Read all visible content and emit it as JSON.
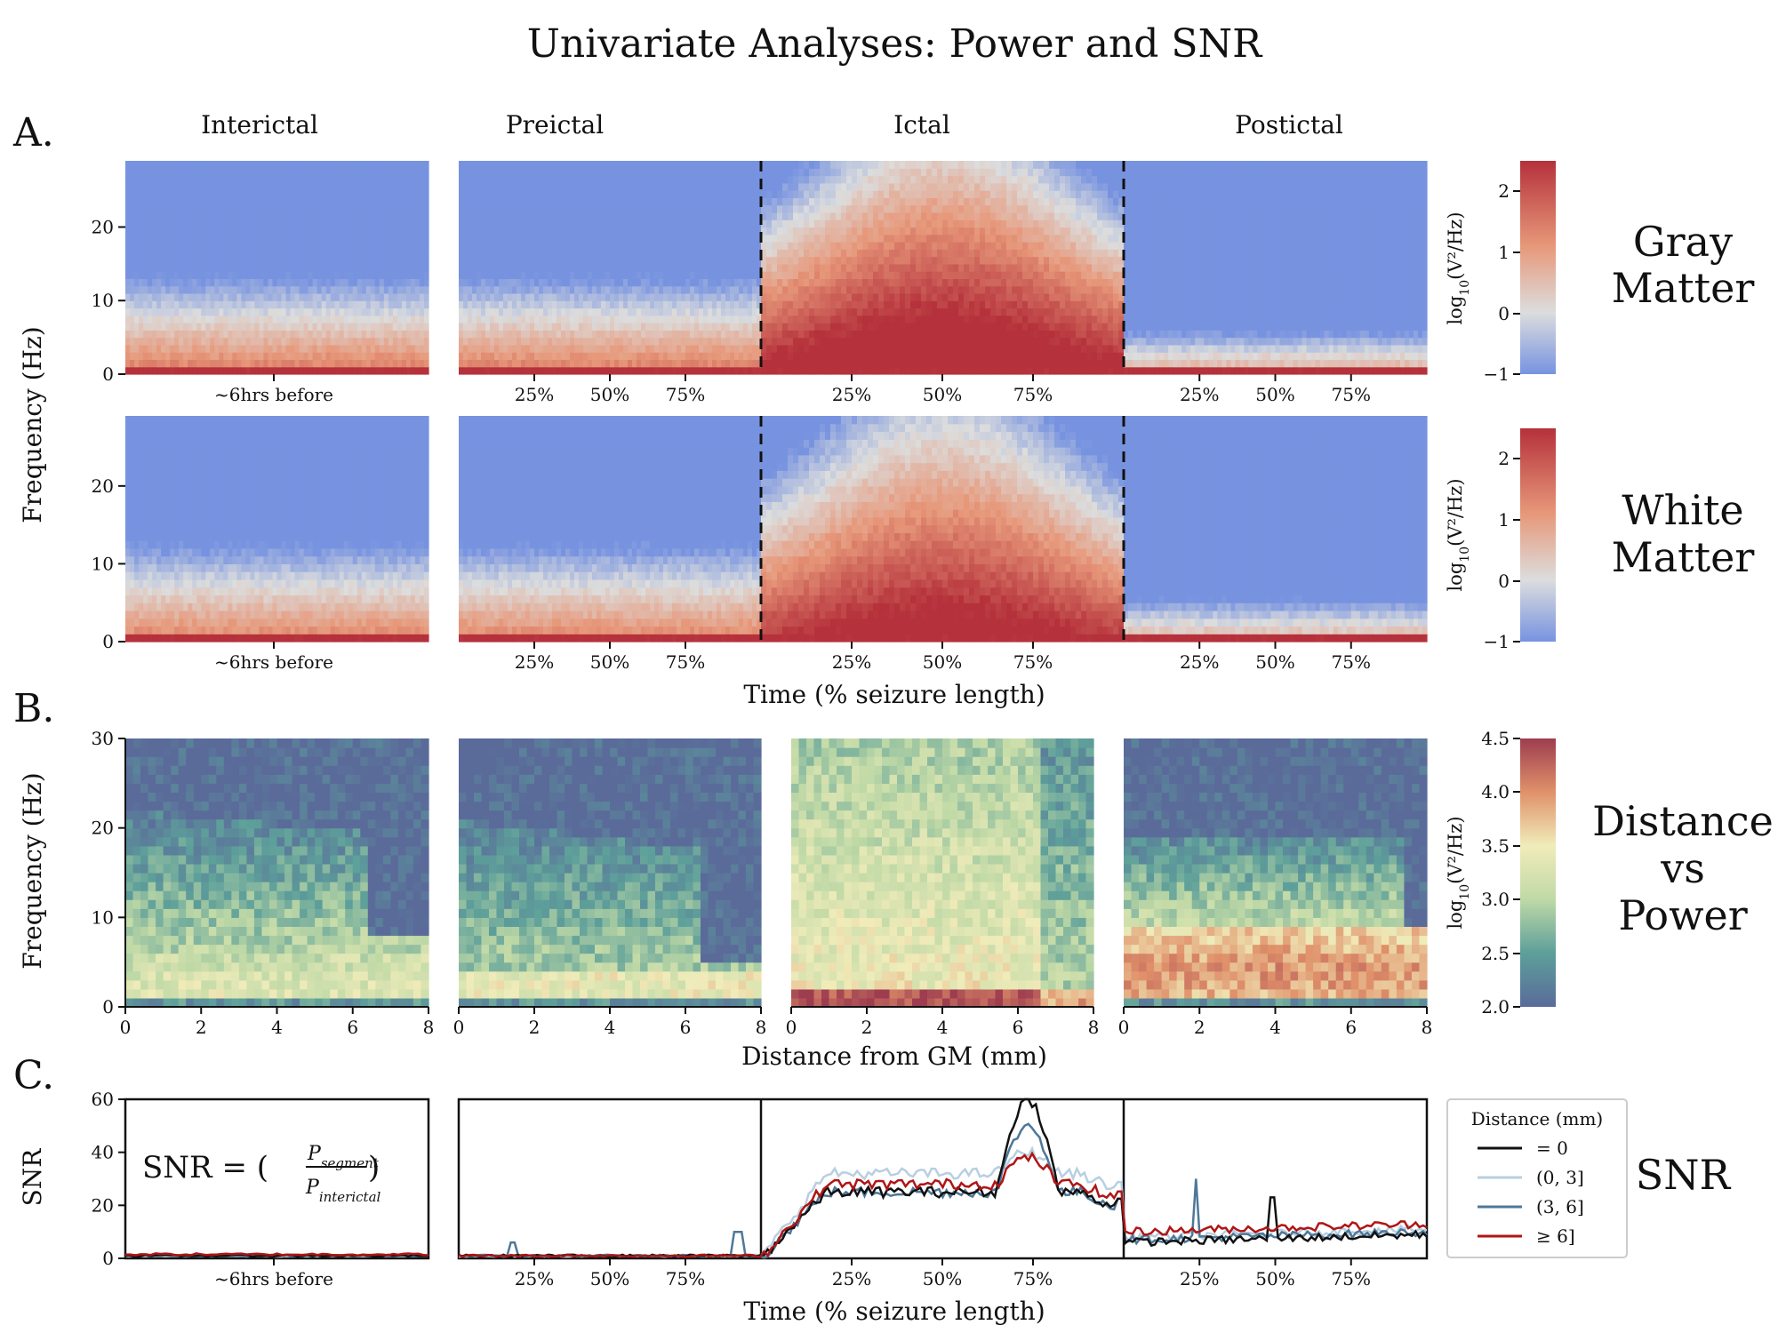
{
  "title": "Univariate Analyses: Power and SNR",
  "panel_letters": [
    "A.",
    "B.",
    "C."
  ],
  "segments": [
    "Interictal",
    "Preictal",
    "Ictal",
    "Postictal"
  ],
  "row_labels": {
    "gray": [
      "Gray",
      "Matter"
    ],
    "white": [
      "White",
      "Matter"
    ],
    "distance": [
      "Distance",
      "vs",
      "Power"
    ],
    "snr": [
      "SNR"
    ]
  },
  "axis_titles": {
    "freq": "Frequency (Hz)",
    "time": "Time (% seizure length)",
    "distance": "Distance from GM (mm)",
    "snr": "SNR"
  },
  "colors": {
    "low": "#7793e0",
    "mid": "#dcdddd",
    "high": "#b5313b",
    "dist_low": "#5a6b9a",
    "dist_mid": "#f0ecba",
    "dist_high": "#9e3d50",
    "series_0": "#111111",
    "series_1": "#b8cfe0",
    "series_2": "#4e7899",
    "series_3": "#b01515"
  },
  "chart_data": [
    {
      "type": "heatmap",
      "name": "Gray Matter spectrogram",
      "categories": [
        "Interictal",
        "Preictal",
        "Ictal",
        "Postictal"
      ],
      "ylim": [
        0,
        29
      ],
      "yticks": [
        0,
        10,
        20
      ],
      "interictal_xtick": "~6hrs before",
      "xticks_pct": [
        "25%",
        "50%",
        "75%"
      ],
      "colorbar": {
        "label_main": "log",
        "label_sub": "10",
        "label_rest": "(V²/Hz)",
        "range": [
          -1,
          2.5
        ],
        "ticks": [
          "2",
          "1",
          "0",
          "−1"
        ]
      }
    },
    {
      "type": "heatmap",
      "name": "White Matter spectrogram",
      "categories": [
        "Interictal",
        "Preictal",
        "Ictal",
        "Postictal"
      ],
      "ylim": [
        0,
        29
      ],
      "yticks": [
        0,
        10,
        20
      ],
      "interictal_xtick": "~6hrs before",
      "xticks_pct": [
        "25%",
        "50%",
        "75%"
      ],
      "colorbar": {
        "label_main": "log",
        "label_sub": "10",
        "label_rest": "(V²/Hz)",
        "range": [
          -1,
          2.5
        ],
        "ticks": [
          "2",
          "1",
          "0",
          "−1"
        ]
      }
    },
    {
      "type": "heatmap",
      "name": "Distance vs Power",
      "categories": [
        "Interictal",
        "Preictal",
        "Ictal",
        "Postictal"
      ],
      "xlim": [
        0,
        8
      ],
      "ylim": [
        0,
        30
      ],
      "xticks": [
        "0",
        "2",
        "4",
        "6",
        "8"
      ],
      "yticks": [
        "0",
        "10",
        "20",
        "30"
      ],
      "colorbar": {
        "label_main": "log",
        "label_sub": "10",
        "label_rest": "(V²/Hz)",
        "range": [
          2.0,
          4.5
        ],
        "ticks": [
          "4.5",
          "4.0",
          "3.5",
          "3.0",
          "2.5",
          "2.0"
        ]
      }
    },
    {
      "type": "line",
      "name": "SNR",
      "ylim": [
        0,
        60
      ],
      "yticks": [
        "0",
        "20",
        "40",
        "60"
      ],
      "formula": {
        "lhs": "SNR = (",
        "num": "P",
        "num_sub": "segment",
        "den": "P",
        "den_sub": "interictal",
        "rhs": ")"
      },
      "legend": {
        "title": "Distance (mm)",
        "placement": "right"
      },
      "series": [
        {
          "name": "= 0",
          "interictal_level": 1,
          "preictal_level": 1,
          "ictal_plateau": 25,
          "ictal_peak": 60,
          "postictal_level": 6
        },
        {
          "name": "(0, 3]",
          "interictal_level": 1,
          "preictal_level": 1,
          "ictal_plateau": 32,
          "ictal_peak": 40,
          "postictal_level": 8
        },
        {
          "name": "(3, 6]",
          "interictal_level": 1,
          "preictal_level": 1,
          "ictal_plateau": 25,
          "ictal_peak": 50,
          "postictal_level": 7
        },
        {
          "name": "≥ 6]",
          "interictal_level": 1.5,
          "preictal_level": 1,
          "ictal_plateau": 28,
          "ictal_peak": 38,
          "postictal_level": 10
        }
      ]
    }
  ]
}
